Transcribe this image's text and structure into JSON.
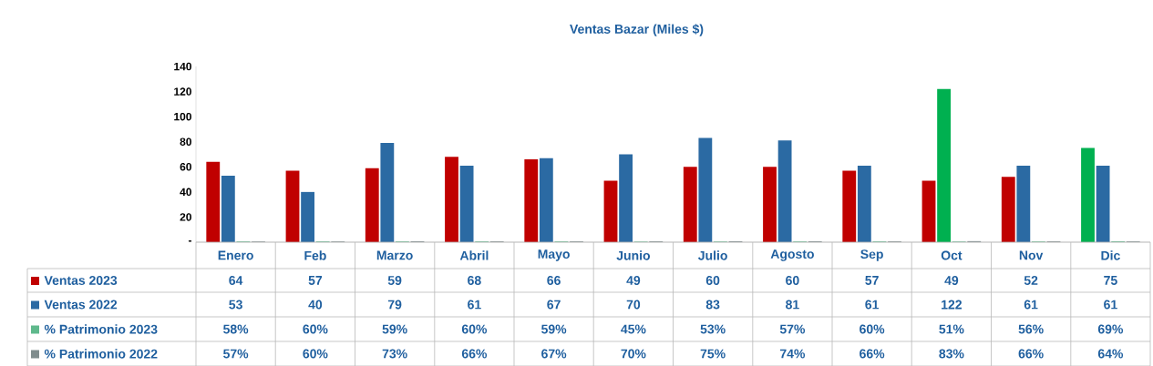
{
  "chart_data": {
    "type": "bar",
    "title": "Ventas Bazar (Miles $)",
    "categories": [
      "Enero",
      "Feb",
      "Marzo",
      "Abril",
      "Mayo",
      "Junio",
      "Julio",
      "Agosto",
      "Sep",
      "Oct",
      "Nov",
      "Dic"
    ],
    "series": [
      {
        "name": "Ventas 2023",
        "color": "#c00000",
        "colors": [
          "#c00000",
          "#c00000",
          "#c00000",
          "#c00000",
          "#c00000",
          "#c00000",
          "#c00000",
          "#c00000",
          "#c00000",
          "#c00000",
          "#c00000",
          "#00b050"
        ],
        "values": [
          64,
          57,
          59,
          68,
          66,
          49,
          60,
          60,
          57,
          49,
          52,
          75
        ]
      },
      {
        "name": "Ventas 2022",
        "color": "#2b6aa3",
        "colors": [
          "#2b6aa3",
          "#2b6aa3",
          "#2b6aa3",
          "#2b6aa3",
          "#2b6aa3",
          "#2b6aa3",
          "#2b6aa3",
          "#2b6aa3",
          "#2b6aa3",
          "#00b050",
          "#2b6aa3",
          "#2b6aa3"
        ],
        "values": [
          53,
          40,
          79,
          61,
          67,
          70,
          83,
          81,
          61,
          122,
          61,
          61
        ]
      },
      {
        "name": "% Patrimonio 2023",
        "color": "#5fb98c",
        "values": [
          0.58,
          0.6,
          0.59,
          0.6,
          0.59,
          0.45,
          0.53,
          0.57,
          0.6,
          0.51,
          0.56,
          0.69
        ],
        "value_labels": [
          "58%",
          "60%",
          "59%",
          "60%",
          "59%",
          "45%",
          "53%",
          "57%",
          "60%",
          "51%",
          "56%",
          "69%"
        ]
      },
      {
        "name": "% Patrimonio 2022",
        "color": "#7f8c8d",
        "values": [
          0.57,
          0.6,
          0.73,
          0.66,
          0.67,
          0.7,
          0.75,
          0.74,
          0.66,
          0.83,
          0.66,
          0.64
        ],
        "value_labels": [
          "57%",
          "60%",
          "73%",
          "66%",
          "67%",
          "70%",
          "75%",
          "74%",
          "66%",
          "83%",
          "66%",
          "64%"
        ]
      }
    ],
    "ylim": [
      0,
      140
    ],
    "yticks": [
      {
        "value": 0,
        "label": "-"
      },
      20,
      40,
      60,
      80,
      100,
      120,
      140
    ],
    "data_labels": true,
    "legend": "bottom"
  }
}
